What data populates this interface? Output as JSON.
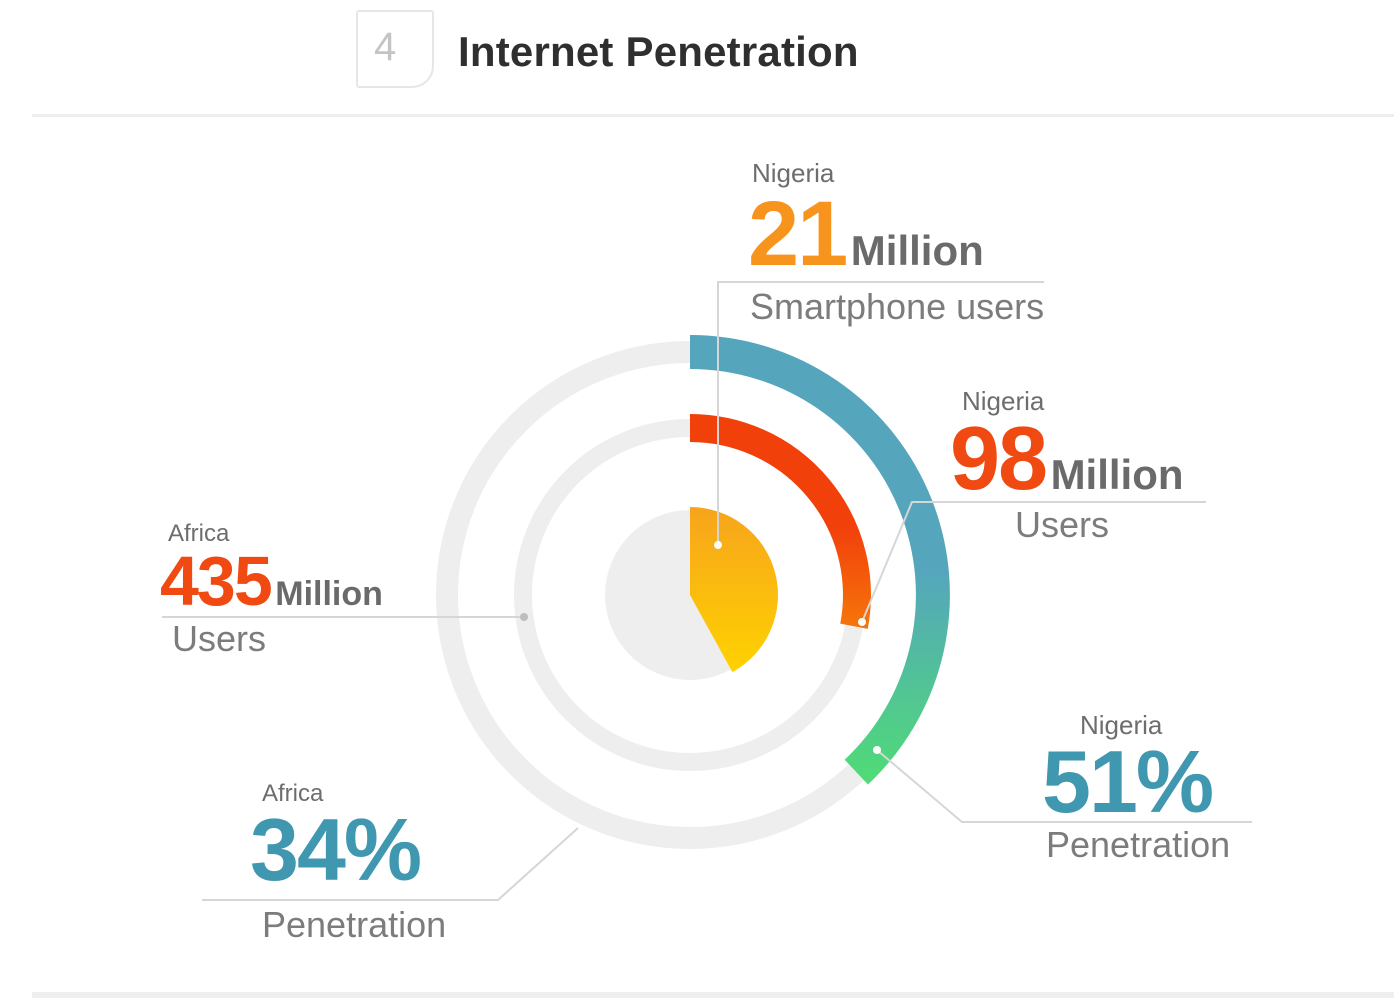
{
  "header": {
    "step_number": "4",
    "title": "Internet Penetration"
  },
  "chart_data": {
    "type": "radial_bar",
    "title": "Internet Penetration",
    "stats": [
      {
        "region": "Nigeria",
        "value": 21,
        "unit": "Million",
        "label": "Smartphone users",
        "color": "#f7941d",
        "ring": "inner"
      },
      {
        "region": "Nigeria",
        "value": 98,
        "unit": "Million",
        "label": "Users",
        "color": "#f04a12",
        "ring": "middle"
      },
      {
        "region": "Nigeria",
        "value": "51%",
        "unit": "",
        "label": "Penetration",
        "color": "#3f97b0",
        "ring": "outer"
      },
      {
        "region": "Africa",
        "value": 435,
        "unit": "Million",
        "label": "Users",
        "color": "#f04a12",
        "ring": "middle-track"
      },
      {
        "region": "Africa",
        "value": "34%",
        "unit": "",
        "label": "Penetration",
        "color": "#3f97b0",
        "ring": "outer-track"
      }
    ],
    "rings": {
      "outer_nigeria_fraction": 0.38,
      "middle_nigeria_fraction": 0.28,
      "inner_nigeria_fraction": 0.42
    },
    "colors": {
      "track": "#eeeeee",
      "inner_top": "#f7a51b",
      "inner_bottom": "#ffd400",
      "middle_top": "#f2400b",
      "middle_bottom": "#f78c0a",
      "outer_top": "#55a5bd",
      "outer_bottom": "#4fe070",
      "leader": "#d6d6d6"
    }
  }
}
